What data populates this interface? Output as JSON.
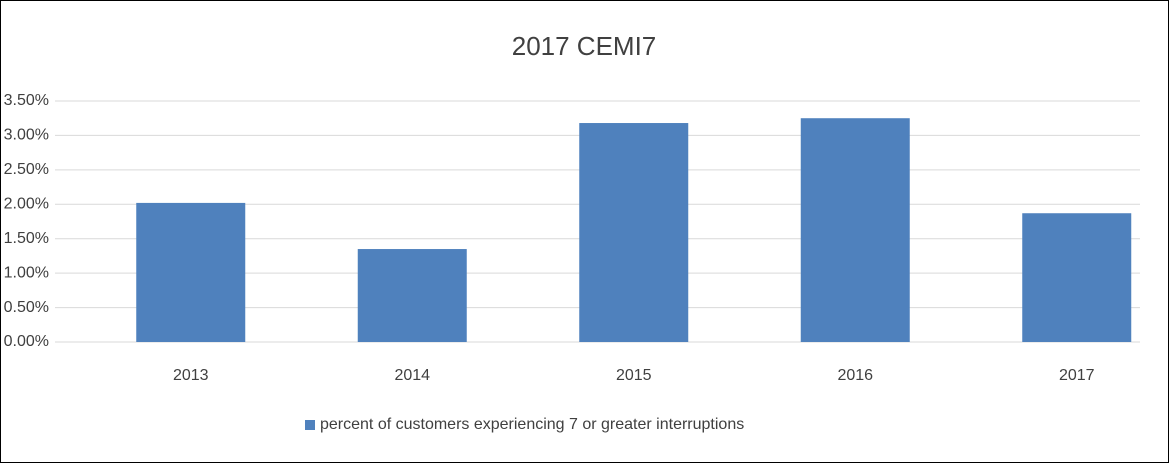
{
  "chart_data": {
    "type": "bar",
    "title": "2017 CEMI7",
    "categories": [
      "2013",
      "2014",
      "2015",
      "2016",
      "2017"
    ],
    "series": [
      {
        "name": "percent of customers experiencing 7 or greater interruptions",
        "color": "#4f81bd",
        "values": [
          2.02,
          1.35,
          3.18,
          3.25,
          1.87
        ]
      }
    ],
    "ylim": [
      0,
      3.5
    ],
    "yticks": [
      {
        "value": 0,
        "label": "0.00%"
      },
      {
        "value": 0.5,
        "label": "0.50%"
      },
      {
        "value": 1,
        "label": "1.00%"
      },
      {
        "value": 1.5,
        "label": "1.50%"
      },
      {
        "value": 2,
        "label": "2.00%"
      },
      {
        "value": 2.5,
        "label": "2.50%"
      },
      {
        "value": 3,
        "label": "3.00%"
      },
      {
        "value": 3.5,
        "label": "3.50%"
      }
    ],
    "grid": true,
    "legend": "bottom"
  }
}
